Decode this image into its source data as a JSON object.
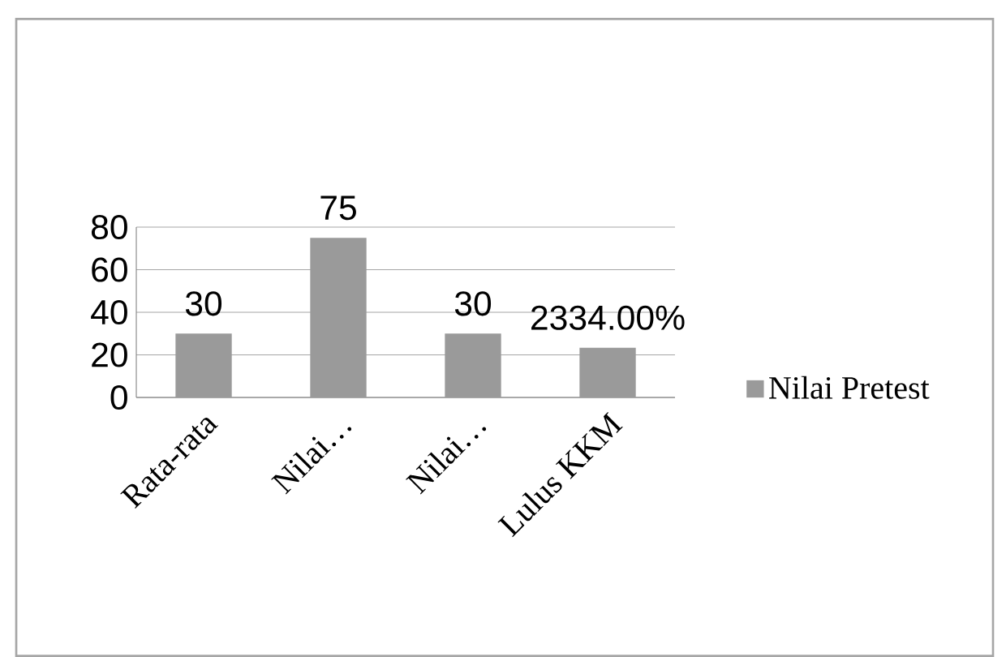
{
  "chart_data": {
    "type": "bar",
    "categories": [
      "Rata-rata",
      "Nilai…",
      "Nilai…",
      "Lulus KKM"
    ],
    "series": [
      {
        "name": "Nilai Pretest",
        "color": "#9a9a9a",
        "values": [
          30,
          75,
          30,
          23.34
        ],
        "value_labels": [
          "30",
          "75",
          "30",
          "2334.00%"
        ]
      }
    ],
    "ylim": [
      0,
      80
    ],
    "yticks": [
      0,
      20,
      40,
      60,
      80
    ],
    "grid": "y",
    "legend": "right"
  }
}
